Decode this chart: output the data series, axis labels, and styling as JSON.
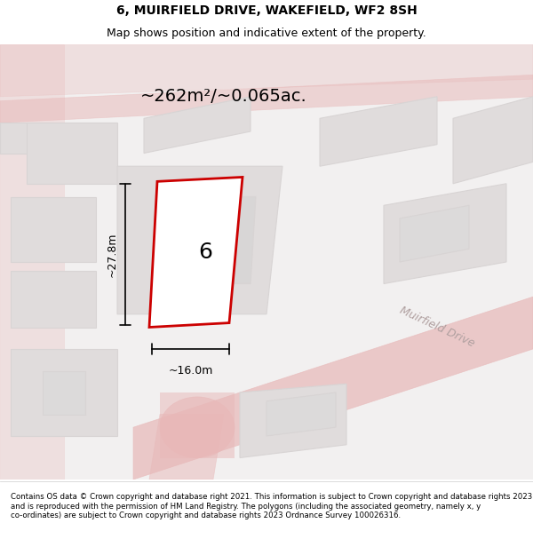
{
  "title": "6, MUIRFIELD DRIVE, WAKEFIELD, WF2 8SH",
  "subtitle": "Map shows position and indicative extent of the property.",
  "footer": "Contains OS data © Crown copyright and database right 2021. This information is subject to Crown copyright and database rights 2023 and is reproduced with the permission of HM Land Registry. The polygons (including the associated geometry, namely x, y co-ordinates) are subject to Crown copyright and database rights 2023 Ordnance Survey 100026316.",
  "area_label": "~262m²/~0.065ac.",
  "width_label": "~16.0m",
  "height_label": "~27.8m",
  "plot_number": "6",
  "road_label": "Muirfield Drive",
  "bg_color": "#f0eeee",
  "map_bg": "#f2f0f0",
  "plot_color": "#cc0000",
  "road_color": "#e8b8b8",
  "building_color": "#d8d4d4",
  "building_fill": "#e0dcdc",
  "fig_width": 6.0,
  "fig_height": 6.25
}
